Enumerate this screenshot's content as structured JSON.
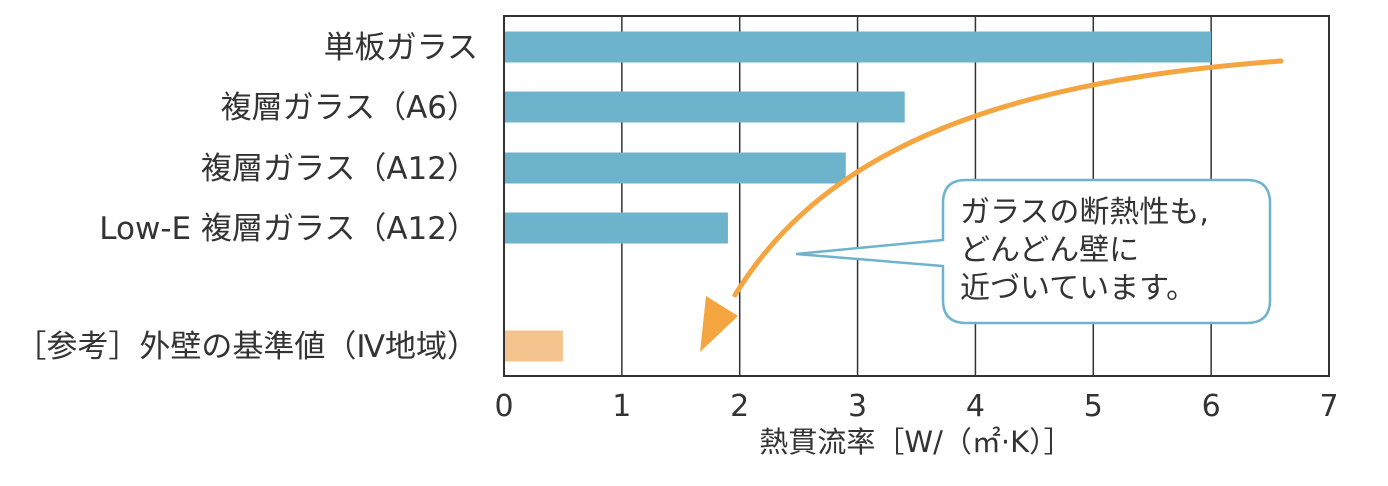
{
  "chart_data": {
    "type": "bar",
    "orientation": "horizontal",
    "categories": [
      "単板ガラス",
      "複層ガラス（A6）",
      "複層ガラス（A12）",
      "Low-E 複層ガラス（A12）",
      "［参考］外壁の基準値（Ⅳ地域）"
    ],
    "values": [
      6.0,
      3.4,
      2.9,
      1.9,
      0.5
    ],
    "bar_colors": [
      "#6db3cb",
      "#6db3cb",
      "#6db3cb",
      "#6db3cb",
      "#f5c48e"
    ],
    "xlabel": "熱貫流率［W/（㎡·K）］",
    "xlim": [
      0,
      7
    ],
    "xticks": [
      "0",
      "1",
      "2",
      "3",
      "4",
      "5",
      "6",
      "7"
    ],
    "grid": "vertical",
    "callout": {
      "lines": [
        "ガラスの断熱性も,",
        "どんどん壁に",
        "近づいています。"
      ],
      "border_color": "#6db3cb"
    },
    "arrow_color": "#f5a53f"
  }
}
